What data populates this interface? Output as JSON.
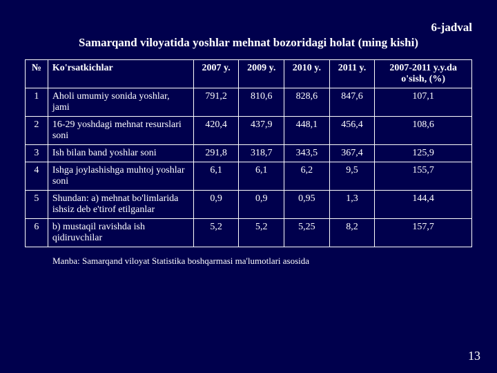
{
  "jadvalLabel": "6-jadval",
  "title": "Samarqand viloyatida yoshlar mehnat bozoridagi holat (ming kishi)",
  "headers": {
    "no": "№",
    "indicator": "Ko'rsatkichlar",
    "y2007": "2007 y.",
    "y2009": "2009 y.",
    "y2010": "2010 y.",
    "y2011": "2011 y.",
    "growth": "2007-2011 y.y.da o'sish, (%)"
  },
  "rows": [
    {
      "n": "1",
      "ind": "Aholi umumiy sonida yoshlar, jami",
      "a": "791,2",
      "b": "810,6",
      "c": "828,6",
      "d": "847,6",
      "g": "107,1"
    },
    {
      "n": "2",
      "ind": "16-29 yoshdagi mehnat resurslari soni",
      "a": "420,4",
      "b": "437,9",
      "c": "448,1",
      "d": "456,4",
      "g": "108,6"
    },
    {
      "n": "3",
      "ind": "Ish bilan band yoshlar soni",
      "a": "291,8",
      "b": "318,7",
      "c": "343,5",
      "d": "367,4",
      "g": "125,9"
    },
    {
      "n": "4",
      "ind": "Ishga joylashishga muhtoj yoshlar soni",
      "a": "6,1",
      "b": "6,1",
      "c": "6,2",
      "d": "9,5",
      "g": "155,7"
    },
    {
      "n": "5",
      "ind": "Shundan: a) mehnat bo'limlarida ishsiz deb e'tirof etilganlar",
      "a": "0,9",
      "b": "0,9",
      "c": "0,95",
      "d": "1,3",
      "g": "144,4"
    },
    {
      "n": "6",
      "ind": "b) mustaqil ravishda ish qidiruvchilar",
      "a": "5,2",
      "b": "5,2",
      "c": "5,25",
      "d": "8,2",
      "g": "157,7"
    }
  ],
  "source": "Manba: Samarqand viloyat Statistika boshqarmasi ma'lumotlari asosida",
  "pageNum": "13"
}
